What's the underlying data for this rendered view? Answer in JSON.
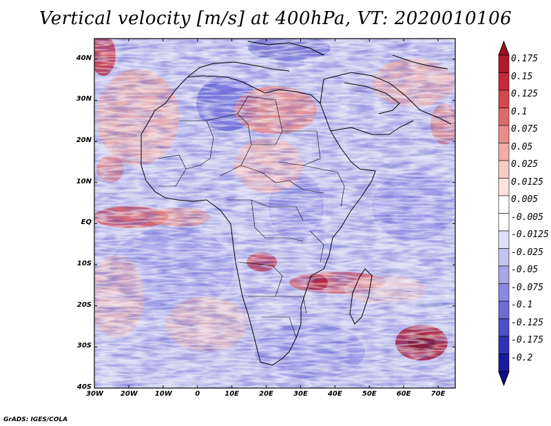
{
  "title": "Vertical velocity [m/s] at 400hPa, VT: 2020010106",
  "footer": "GrADS: IGES/COLA",
  "map": {
    "lat_range": [
      -40,
      45
    ],
    "lon_range": [
      -30,
      75
    ],
    "lat_labels": [
      {
        "value": 40,
        "text": "40N"
      },
      {
        "value": 30,
        "text": "30N"
      },
      {
        "value": 20,
        "text": "20N"
      },
      {
        "value": 10,
        "text": "10N"
      },
      {
        "value": 0,
        "text": "EQ"
      },
      {
        "value": -10,
        "text": "10S"
      },
      {
        "value": -20,
        "text": "20S"
      },
      {
        "value": -30,
        "text": "30S"
      },
      {
        "value": -40,
        "text": "40S"
      }
    ],
    "lon_labels": [
      {
        "value": -30,
        "text": "30W"
      },
      {
        "value": -20,
        "text": "20W"
      },
      {
        "value": -10,
        "text": "10W"
      },
      {
        "value": 0,
        "text": "0"
      },
      {
        "value": 10,
        "text": "10E"
      },
      {
        "value": 20,
        "text": "20E"
      },
      {
        "value": 30,
        "text": "30E"
      },
      {
        "value": 40,
        "text": "40E"
      },
      {
        "value": 50,
        "text": "50E"
      },
      {
        "value": 60,
        "text": "60E"
      },
      {
        "value": 70,
        "text": "70E"
      }
    ]
  },
  "colorbar": {
    "levels": [
      {
        "label": "0.175",
        "color": "#b2182b"
      },
      {
        "label": "0.15",
        "color": "#c8283a"
      },
      {
        "label": "0.125",
        "color": "#d6474f"
      },
      {
        "label": "0.1",
        "color": "#e06a6a"
      },
      {
        "label": "0.075",
        "color": "#ea8d88"
      },
      {
        "label": "0.05",
        "color": "#f2ada6"
      },
      {
        "label": "0.025",
        "color": "#f8cbc4"
      },
      {
        "label": "0.0125",
        "color": "#fce3de"
      },
      {
        "label": "0.005",
        "color": "#ffffff"
      },
      {
        "label": "-0.005",
        "color": "#ffffff"
      },
      {
        "label": "-0.0125",
        "color": "#e0e0fa"
      },
      {
        "label": "-0.025",
        "color": "#c4c4f2"
      },
      {
        "label": "-0.05",
        "color": "#a6a6ea"
      },
      {
        "label": "-0.075",
        "color": "#8a8ae2"
      },
      {
        "label": "-0.1",
        "color": "#6c6cd6"
      },
      {
        "label": "-0.125",
        "color": "#4e4ec8"
      },
      {
        "label": "-0.175",
        "color": "#3030b8"
      },
      {
        "label": "-0.2",
        "color": "#1a1aa0"
      }
    ],
    "top_cap_color": "#a01020",
    "bottom_cap_color": "#0c0c8c"
  }
}
